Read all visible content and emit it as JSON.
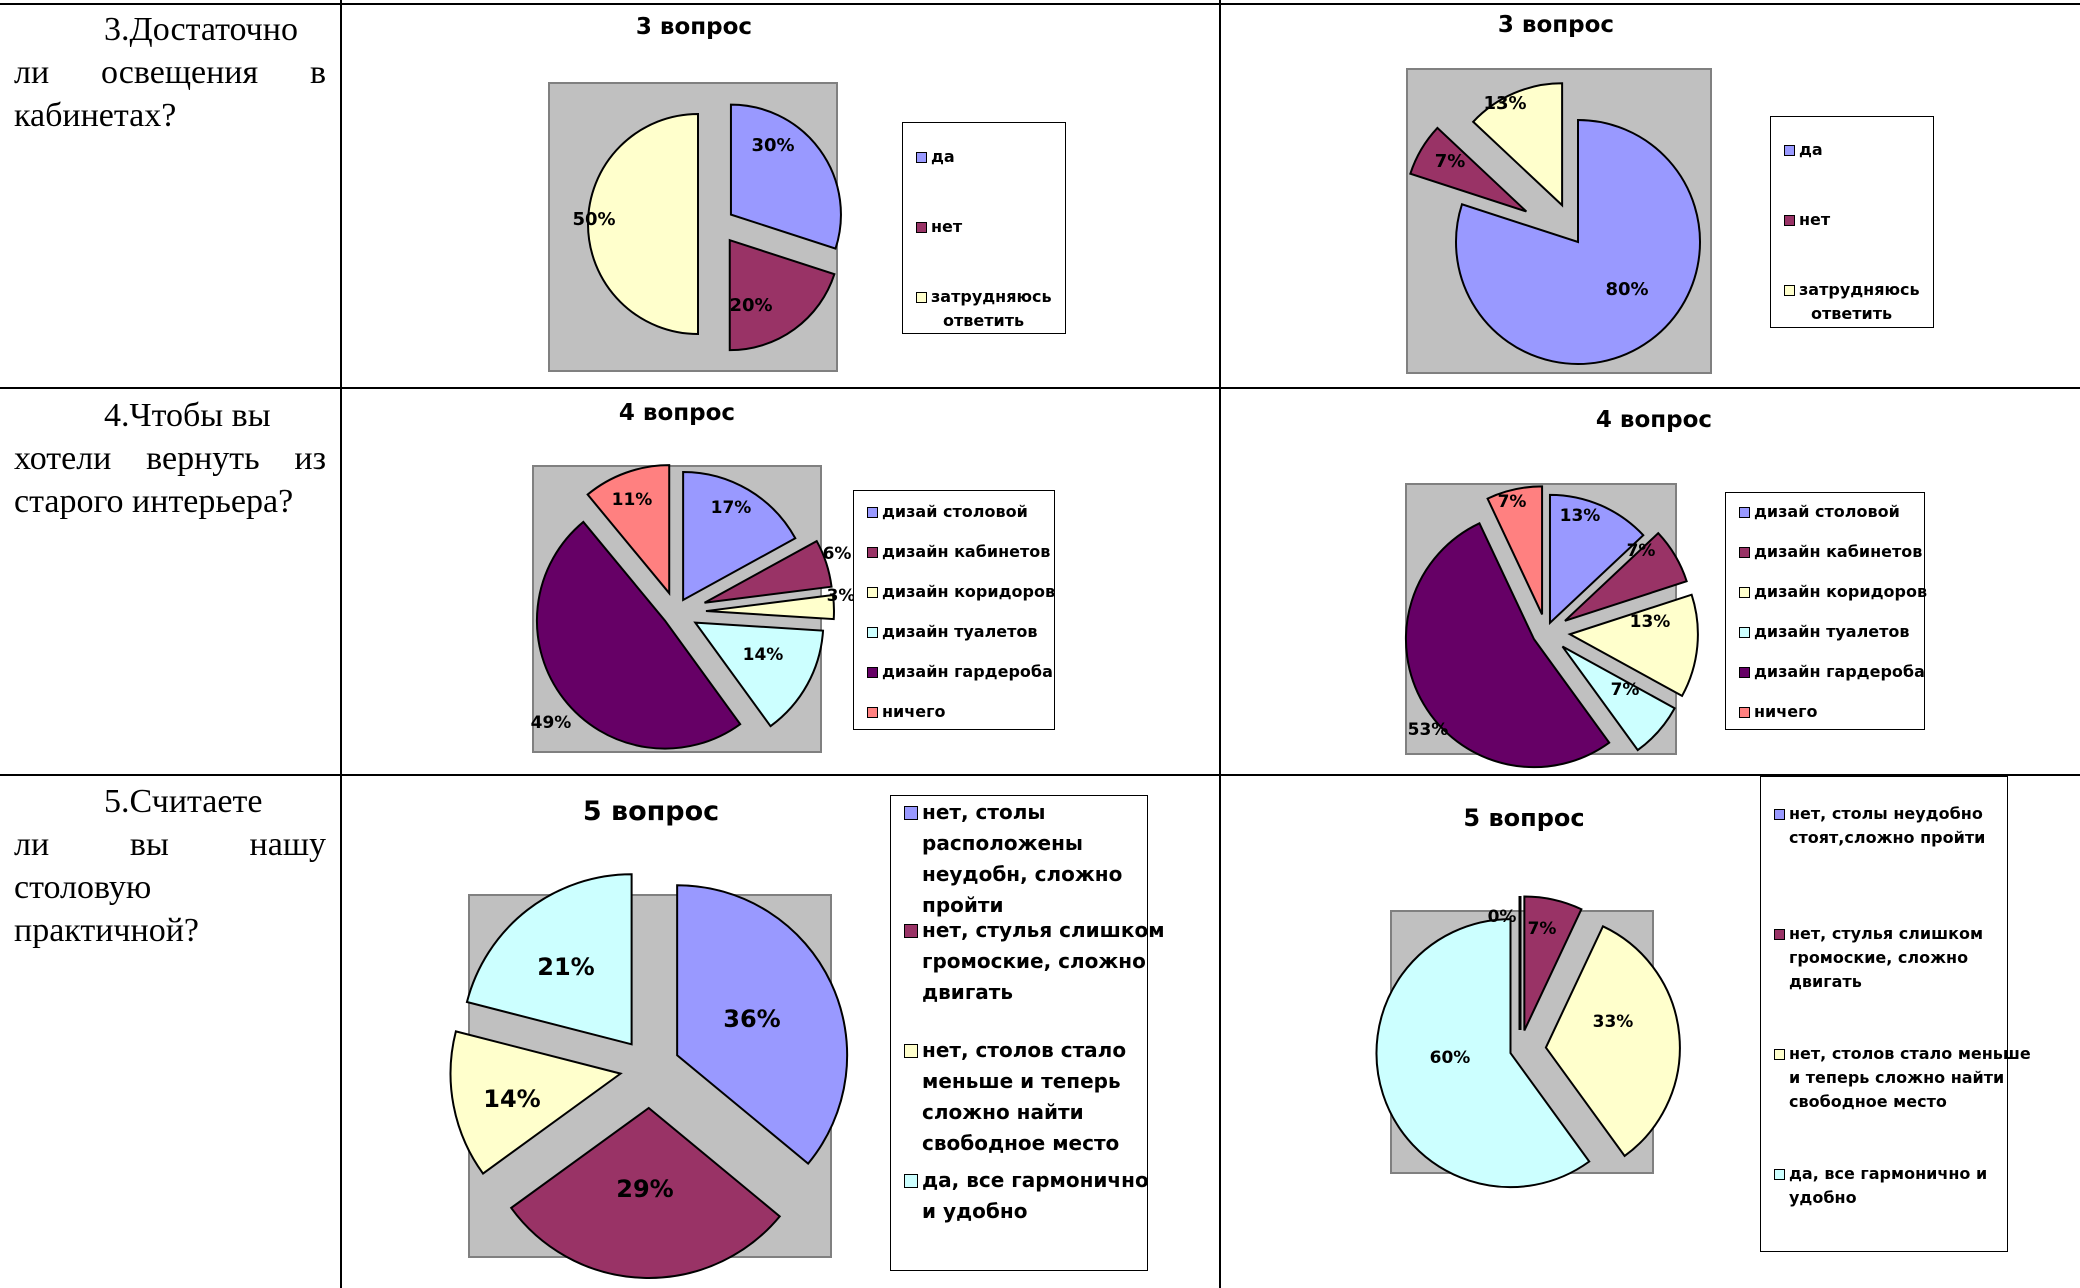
{
  "questions": [
    {
      "text_lines": [
        "3.Достаточно",
        "ли освещения в",
        "кабинетах?"
      ]
    },
    {
      "text_lines": [
        "4.Чтобы вы",
        "хотели вернуть из",
        "старого интерьера?"
      ]
    },
    {
      "text_lines": [
        "5.Считаете",
        "ли вы нашу",
        "столовую",
        "практичной?"
      ]
    }
  ],
  "colors": {
    "blue": "#9999ff",
    "maroon": "#993366",
    "lightyellow": "#ffffcc",
    "lightcyan": "#ccffff",
    "purple": "#660066",
    "salmon": "#ff8080",
    "plotbg": "#c0c0c0"
  },
  "chart_data": [
    {
      "type": "pie",
      "title": "3 вопрос",
      "slices": [
        {
          "label": "да",
          "value": 30,
          "pct": "30%",
          "color": "#9999ff"
        },
        {
          "label": "нет",
          "value": 20,
          "pct": "20%",
          "color": "#993366"
        },
        {
          "label": "затрудняюсь ответить",
          "value": 50,
          "pct": "50%",
          "color": "#ffffcc"
        }
      ],
      "legend_labels": [
        [
          "да"
        ],
        [
          "нет"
        ],
        [
          "затрудняюсь",
          "ответить"
        ]
      ],
      "legend": "right"
    },
    {
      "type": "pie",
      "title": "3 вопрос",
      "slices": [
        {
          "label": "да",
          "value": 80,
          "pct": "80%",
          "color": "#9999ff"
        },
        {
          "label": "нет",
          "value": 7,
          "pct": "7%",
          "color": "#993366"
        },
        {
          "label": "затрудняюсь ответить",
          "value": 13,
          "pct": "13%",
          "color": "#ffffcc"
        }
      ],
      "legend_labels": [
        [
          "да"
        ],
        [
          "нет"
        ],
        [
          "затрудняюсь",
          "ответить"
        ]
      ],
      "legend": "right"
    },
    {
      "type": "pie",
      "title": "4 вопрос",
      "slices": [
        {
          "label": "дизай столовой",
          "value": 17,
          "pct": "17%",
          "color": "#9999ff"
        },
        {
          "label": "дизайн кабинетов",
          "value": 6,
          "pct": "6%",
          "color": "#993366"
        },
        {
          "label": "дизайн коридоров",
          "value": 3,
          "pct": "3%",
          "color": "#ffffcc"
        },
        {
          "label": "дизайн туалетов",
          "value": 14,
          "pct": "14%",
          "color": "#ccffff"
        },
        {
          "label": "дизайн гардероба",
          "value": 49,
          "pct": "49%",
          "color": "#660066"
        },
        {
          "label": "ничего",
          "value": 11,
          "pct": "11%",
          "color": "#ff8080"
        }
      ],
      "legend_labels": [
        [
          "дизай столовой"
        ],
        [
          "дизайн кабинетов"
        ],
        [
          "дизайн коридоров"
        ],
        [
          "дизайн туалетов"
        ],
        [
          "дизайн гардероба"
        ],
        [
          "ничего"
        ]
      ],
      "legend": "right"
    },
    {
      "type": "pie",
      "title": "4 вопрос",
      "slices": [
        {
          "label": "дизай столовой",
          "value": 13,
          "pct": "13%",
          "color": "#9999ff"
        },
        {
          "label": "дизайн кабинетов",
          "value": 7,
          "pct": "7%",
          "color": "#993366"
        },
        {
          "label": "дизайн коридоров",
          "value": 13,
          "pct": "13%",
          "color": "#ffffcc"
        },
        {
          "label": "дизайн туалетов",
          "value": 7,
          "pct": "7%",
          "color": "#ccffff"
        },
        {
          "label": "дизайн гардероба",
          "value": 53,
          "pct": "53%",
          "color": "#660066"
        },
        {
          "label": "ничего",
          "value": 7,
          "pct": "7%",
          "color": "#ff8080"
        }
      ],
      "legend_labels": [
        [
          "дизай столовой"
        ],
        [
          "дизайн кабинетов"
        ],
        [
          "дизайн коридоров"
        ],
        [
          "дизайн туалетов"
        ],
        [
          "дизайн гардероба"
        ],
        [
          "ничего"
        ]
      ],
      "legend": "right"
    },
    {
      "type": "pie",
      "title": "5 вопрос",
      "slices": [
        {
          "label": "нет, столы расположены неудобн, сложно пройти",
          "value": 36,
          "pct": "36%",
          "color": "#9999ff"
        },
        {
          "label": "нет, стулья слишком громоские, сложно двигать",
          "value": 29,
          "pct": "29%",
          "color": "#993366"
        },
        {
          "label": "нет, столов стало меньше и теперь сложно найти свободное место",
          "value": 14,
          "pct": "14%",
          "color": "#ffffcc"
        },
        {
          "label": "да, все гармонично и удобно",
          "value": 21,
          "pct": "21%",
          "color": "#ccffff"
        }
      ],
      "legend_labels": [
        [
          "нет, столы",
          "расположены",
          "неудобн, сложно",
          "пройти"
        ],
        [
          "нет, стулья слишком",
          "громоские, сложно",
          "двигать"
        ],
        [
          "нет, столов стало",
          "меньше и теперь",
          "сложно найти",
          "свободное место"
        ],
        [
          "да, все гармонично",
          "и удобно"
        ]
      ],
      "legend": "right"
    },
    {
      "type": "pie",
      "title": "5 вопрос",
      "slices": [
        {
          "label": "нет, столы неудобно стоят,сложно пройти",
          "value": 0,
          "pct": "0%",
          "color": "#9999ff"
        },
        {
          "label": "нет, стулья слишком громоские, сложно двигать",
          "value": 7,
          "pct": "7%",
          "color": "#993366"
        },
        {
          "label": "нет, столов стало меньше и теперь сложно найти свободное место",
          "value": 33,
          "pct": "33%",
          "color": "#ffffcc"
        },
        {
          "label": "да, все гармонично и удобно",
          "value": 60,
          "pct": "60%",
          "color": "#ccffff"
        }
      ],
      "legend_labels": [
        [
          "нет, столы неудобно",
          "стоят,сложно пройти"
        ],
        [
          "нет, стулья слишком",
          "громоские, сложно",
          "двигать"
        ],
        [
          "нет, столов стало меньше",
          "и теперь сложно найти",
          "свободное место"
        ],
        [
          "да, все гармонично и",
          "удобно"
        ]
      ],
      "legend": "right"
    }
  ]
}
